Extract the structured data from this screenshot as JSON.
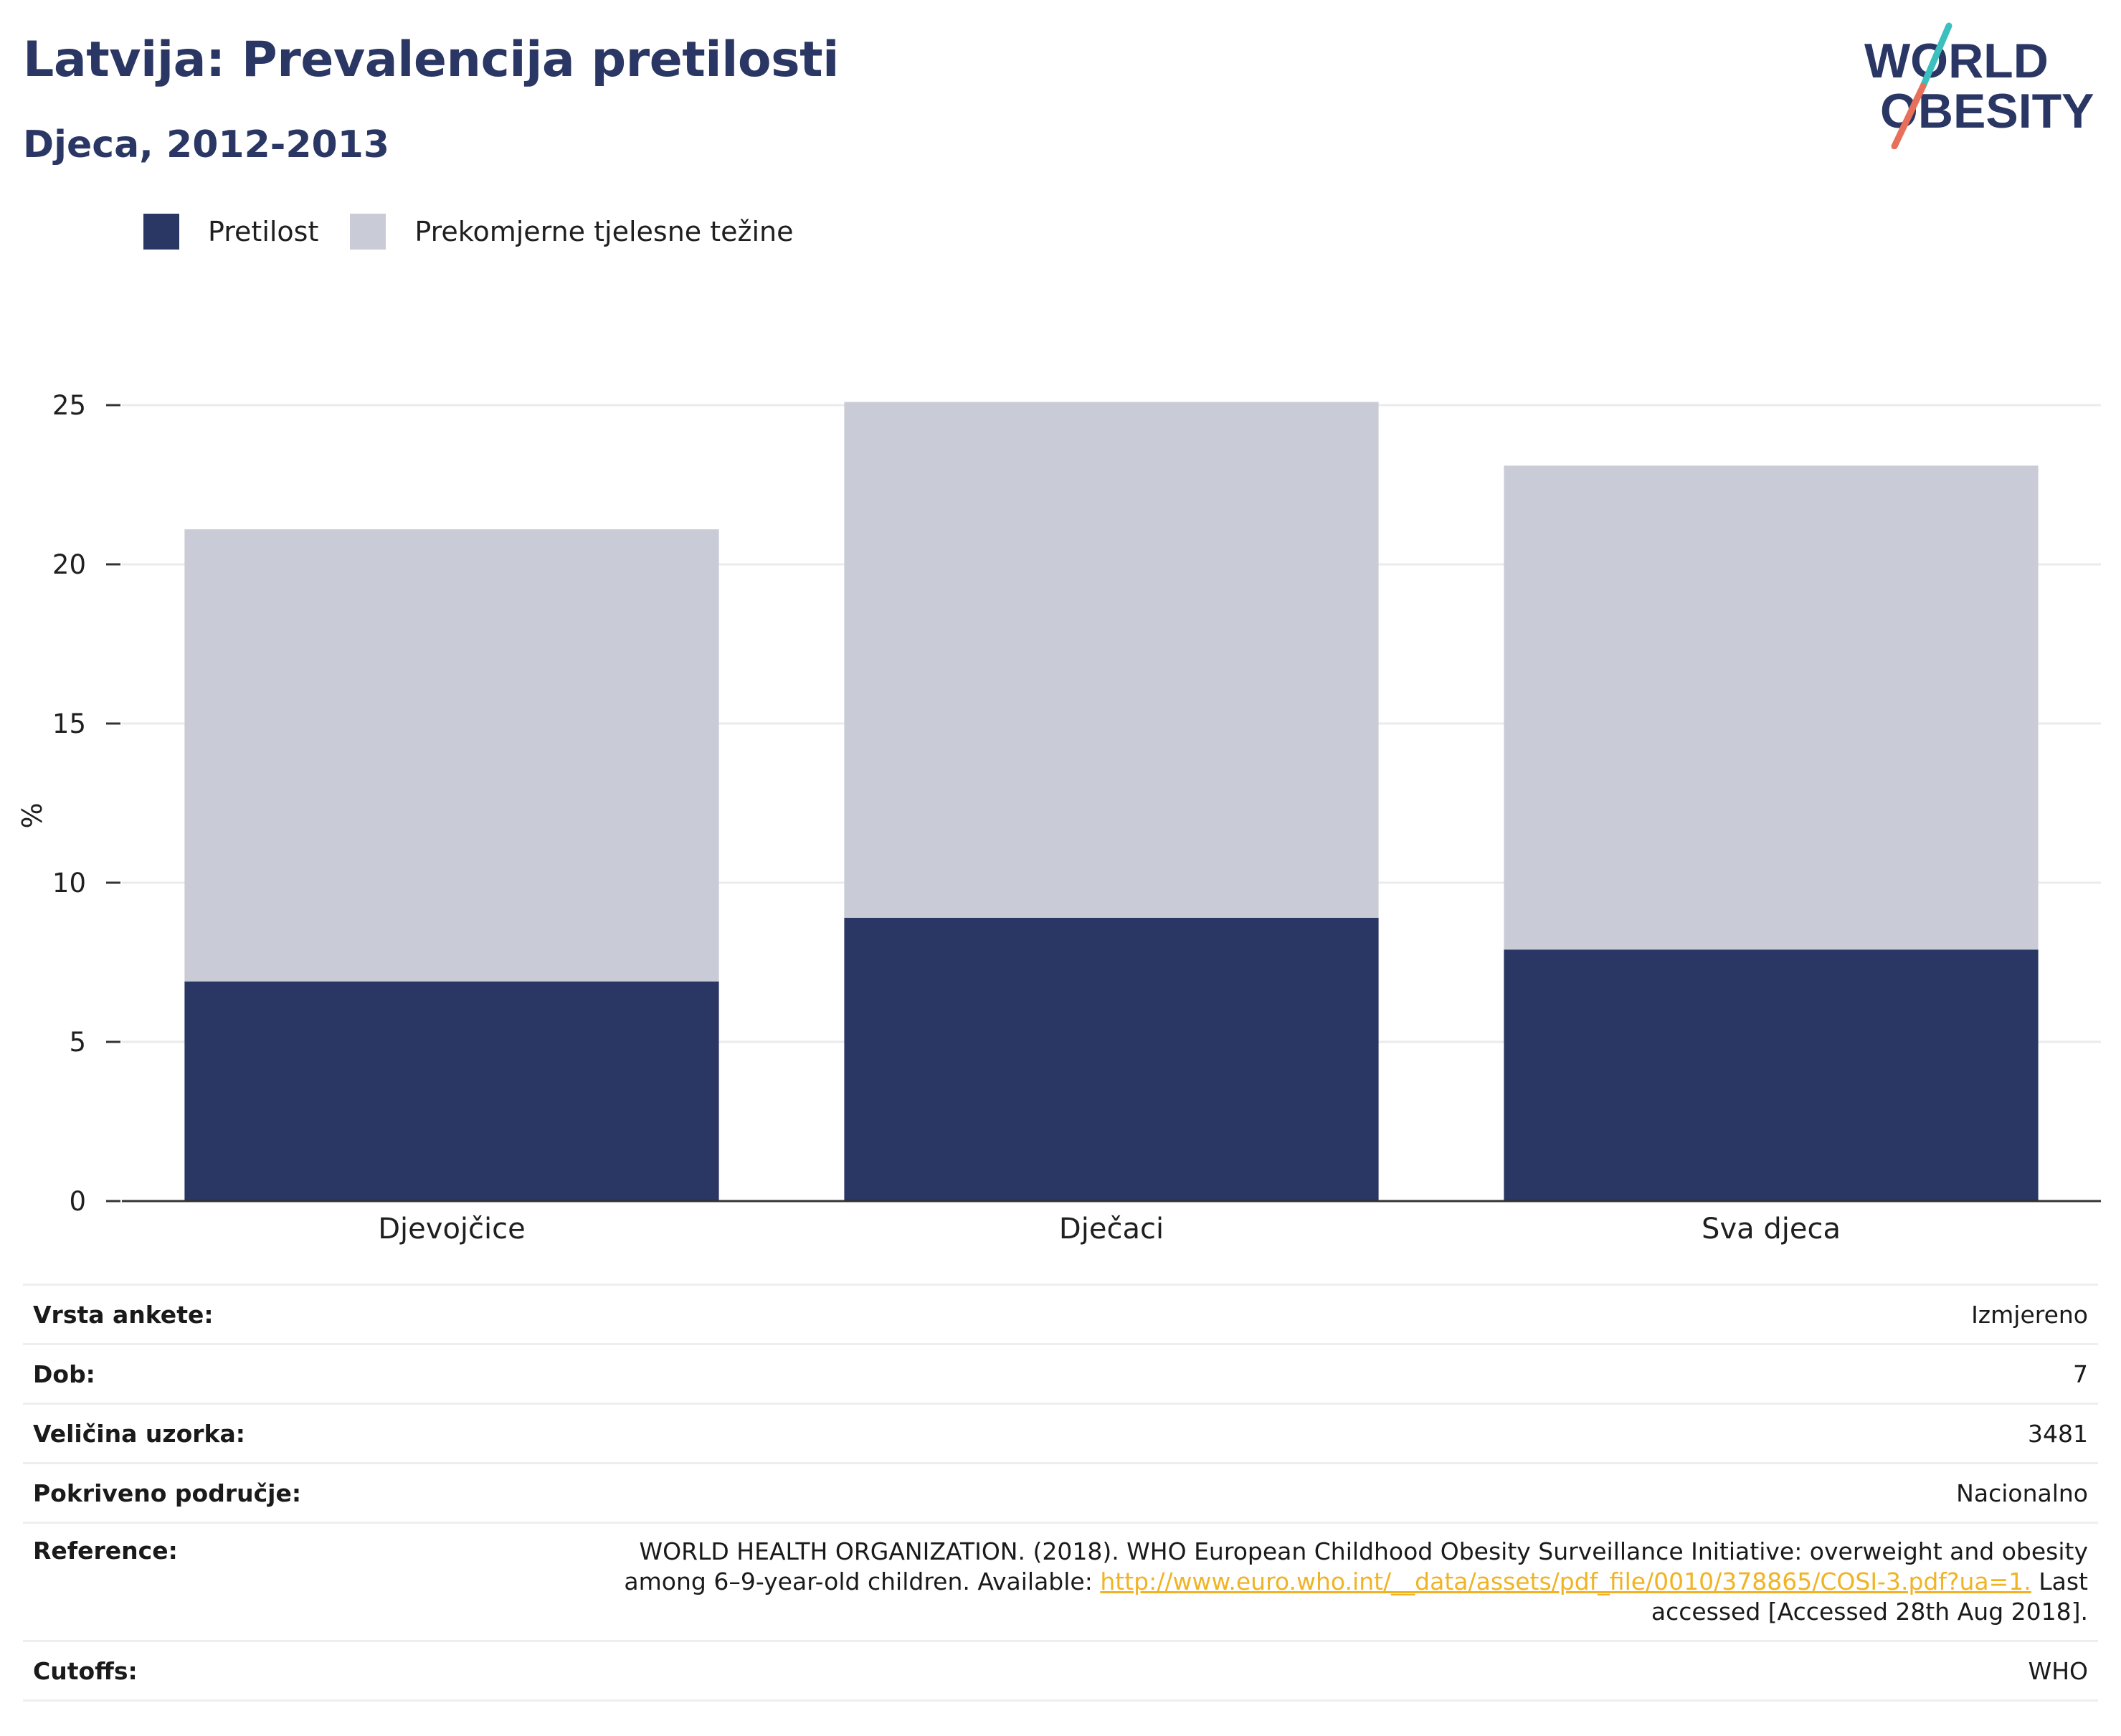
{
  "header": {
    "title": "Latvija: Prevalencija pretilosti",
    "subtitle": "Djeca, 2012-2013"
  },
  "logo": {
    "line1": "WORLD",
    "line2": "OBESITY",
    "colors": {
      "text": "#2a3663",
      "slash_top": "#3cbfbf",
      "slash_bottom": "#e8705a"
    }
  },
  "legend": [
    {
      "label": "Pretilost",
      "color": "#2a3663"
    },
    {
      "label": "Prekomjerne tjelesne težine",
      "color": "#c9cbd6"
    }
  ],
  "chart_data": {
    "type": "bar",
    "stacked": true,
    "categories": [
      "Djevojčice",
      "Dječaci",
      "Sva djeca"
    ],
    "series": [
      {
        "name": "Pretilost",
        "values": [
          6.9,
          8.9,
          7.9
        ],
        "color": "#2a3663"
      },
      {
        "name": "Prekomjerne tjelesne težine",
        "values": [
          14.2,
          16.2,
          15.2
        ],
        "color": "#c9cbd6"
      }
    ],
    "ylabel": "%",
    "ylim": [
      0,
      25
    ],
    "yticks": [
      0,
      5,
      10,
      15,
      20,
      25
    ],
    "grid": true,
    "legend_position": "top-left"
  },
  "meta": {
    "survey_type": {
      "label": "Vrsta ankete:",
      "value": "Izmjereno"
    },
    "age": {
      "label": "Dob:",
      "value": "7"
    },
    "sample_size": {
      "label": "Veličina uzorka:",
      "value": "3481"
    },
    "coverage": {
      "label": "Pokriveno područje:",
      "value": "Nacionalno"
    },
    "reference": {
      "label": "Reference:",
      "text_before": "WORLD HEALTH ORGANIZATION. (2018). WHO European Childhood Obesity Surveillance Initiative: overweight and obesity among 6–9-year-old children. Available: ",
      "link": "http://www.euro.who.int/__data/assets/pdf_file/0010/378865/COSI-3.pdf?ua=1.",
      "text_after": " Last accessed [Accessed 28th Aug 2018]."
    },
    "cutoffs": {
      "label": "Cutoffs:",
      "value": "WHO"
    }
  }
}
